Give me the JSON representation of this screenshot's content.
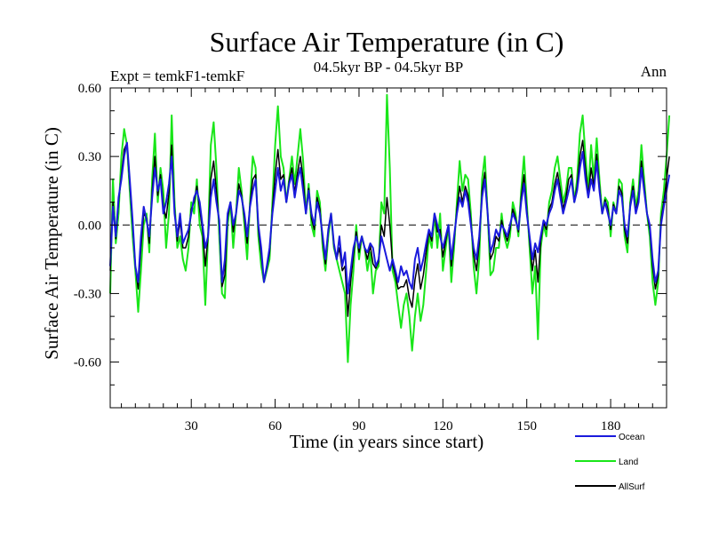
{
  "chart_data": {
    "type": "line",
    "title": "Surface Air Temperature (in C)",
    "subtitle_left": "Expt = temkF1-temkF",
    "subtitle_center": "04.5kyr BP - 04.5kyr BP",
    "subtitle_right": "Ann",
    "xlabel": "Time (in years since start)",
    "ylabel": "Surface Air Temperature (in C)",
    "xlim": [
      1,
      200
    ],
    "ylim": [
      -0.8,
      0.6
    ],
    "xticks": [
      30,
      60,
      90,
      120,
      150,
      180
    ],
    "xtick_labels": [
      "30",
      "60",
      "90",
      "120",
      "150",
      "180"
    ],
    "yticks": [
      0.6,
      0.3,
      0.0,
      -0.3,
      -0.6
    ],
    "ytick_labels": [
      "0.60",
      "0.30",
      "0.00",
      "-0.30",
      "-0.60"
    ],
    "zero_line": true,
    "series": [
      {
        "name": "Ocean",
        "color": "#1a1adc",
        "values": [
          -0.18,
          0.08,
          -0.05,
          0.12,
          0.2,
          0.3,
          0.36,
          0.2,
          0.02,
          -0.18,
          -0.25,
          -0.05,
          0.08,
          0.02,
          -0.05,
          0.12,
          0.25,
          0.15,
          0.2,
          0.05,
          0.1,
          0.18,
          0.3,
          0.05,
          -0.05,
          0.05,
          -0.08,
          -0.05,
          -0.02,
          0.05,
          0.12,
          0.15,
          0.1,
          0.0,
          -0.1,
          -0.05,
          0.12,
          0.2,
          0.1,
          0.02,
          -0.25,
          -0.15,
          0.05,
          0.1,
          0.0,
          0.05,
          0.15,
          0.12,
          0.05,
          -0.05,
          0.08,
          0.15,
          0.2,
          0.0,
          -0.1,
          -0.25,
          -0.18,
          -0.1,
          0.05,
          0.15,
          0.25,
          0.15,
          0.2,
          0.1,
          0.18,
          0.22,
          0.12,
          0.2,
          0.25,
          0.15,
          0.05,
          0.15,
          0.05,
          0.0,
          0.1,
          0.05,
          -0.05,
          -0.15,
          -0.02,
          0.05,
          -0.08,
          -0.15,
          -0.05,
          -0.18,
          -0.12,
          -0.3,
          -0.2,
          -0.1,
          -0.05,
          -0.1,
          -0.05,
          -0.1,
          -0.12,
          -0.08,
          -0.1,
          -0.18,
          -0.15,
          -0.05,
          -0.1,
          -0.15,
          -0.2,
          -0.15,
          -0.2,
          -0.25,
          -0.18,
          -0.22,
          -0.2,
          -0.25,
          -0.28,
          -0.15,
          -0.1,
          -0.2,
          -0.15,
          -0.08,
          -0.02,
          -0.05,
          0.05,
          0.0,
          -0.05,
          -0.1,
          -0.05,
          0.0,
          -0.15,
          -0.05,
          0.05,
          0.12,
          0.08,
          0.15,
          0.1,
          0.0,
          -0.1,
          -0.15,
          -0.05,
          0.12,
          0.2,
          0.05,
          -0.12,
          -0.08,
          -0.02,
          -0.05,
          0.0,
          -0.02,
          -0.05,
          0.0,
          0.05,
          0.02,
          -0.02,
          0.1,
          0.18,
          0.05,
          -0.05,
          -0.15,
          -0.08,
          -0.12,
          -0.05,
          0.02,
          0.0,
          0.05,
          0.08,
          0.15,
          0.2,
          0.12,
          0.05,
          0.1,
          0.15,
          0.2,
          0.1,
          0.15,
          0.25,
          0.32,
          0.2,
          0.12,
          0.2,
          0.15,
          0.28,
          0.15,
          0.05,
          0.1,
          0.05,
          0.0,
          0.08,
          0.05,
          0.15,
          0.12,
          0.0,
          -0.05,
          0.08,
          0.15,
          0.05,
          0.1,
          0.25,
          0.15,
          0.05,
          0.0,
          -0.15,
          -0.25,
          -0.2,
          0.0,
          0.08,
          0.15,
          0.22
        ]
      },
      {
        "name": "Land",
        "color": "#19e619",
        "values": [
          -0.3,
          0.2,
          -0.08,
          0.05,
          0.3,
          0.42,
          0.35,
          0.15,
          -0.05,
          -0.2,
          -0.38,
          -0.2,
          0.0,
          0.05,
          -0.12,
          0.2,
          0.4,
          0.1,
          0.25,
          0.15,
          -0.1,
          0.05,
          0.48,
          0.1,
          -0.1,
          -0.05,
          -0.15,
          -0.2,
          -0.1,
          0.1,
          0.05,
          0.2,
          0.0,
          -0.05,
          -0.35,
          -0.05,
          0.35,
          0.45,
          0.25,
          -0.05,
          -0.3,
          -0.32,
          0.0,
          0.1,
          -0.1,
          0.05,
          0.25,
          0.15,
          0.0,
          -0.15,
          0.1,
          0.3,
          0.25,
          -0.05,
          -0.18,
          -0.25,
          -0.2,
          -0.15,
          0.1,
          0.35,
          0.52,
          0.3,
          0.25,
          0.1,
          0.2,
          0.3,
          0.18,
          0.3,
          0.42,
          0.28,
          0.05,
          0.18,
          0.0,
          -0.05,
          0.15,
          0.1,
          -0.1,
          -0.2,
          -0.05,
          0.05,
          -0.1,
          -0.15,
          -0.2,
          -0.25,
          -0.3,
          -0.6,
          -0.35,
          -0.2,
          0.0,
          -0.15,
          -0.05,
          -0.1,
          -0.2,
          -0.12,
          -0.3,
          -0.2,
          -0.18,
          0.1,
          0.05,
          0.57,
          0.25,
          -0.2,
          -0.25,
          -0.35,
          -0.45,
          -0.35,
          -0.3,
          -0.4,
          -0.55,
          -0.4,
          -0.3,
          -0.42,
          -0.35,
          -0.2,
          -0.05,
          -0.1,
          0.05,
          -0.1,
          0.05,
          -0.2,
          -0.1,
          0.0,
          -0.25,
          -0.1,
          0.1,
          0.28,
          0.15,
          0.22,
          0.2,
          0.05,
          -0.18,
          -0.3,
          -0.15,
          0.2,
          0.3,
          0.05,
          -0.22,
          -0.2,
          -0.1,
          -0.1,
          0.05,
          -0.05,
          -0.1,
          -0.05,
          0.1,
          0.05,
          -0.05,
          0.15,
          0.3,
          0.1,
          -0.1,
          -0.3,
          -0.18,
          -0.5,
          -0.1,
          0.0,
          -0.05,
          0.1,
          0.15,
          0.25,
          0.3,
          0.2,
          0.1,
          0.15,
          0.25,
          0.25,
          0.1,
          0.2,
          0.4,
          0.48,
          0.3,
          0.15,
          0.35,
          0.2,
          0.38,
          0.2,
          0.05,
          0.12,
          0.1,
          -0.05,
          0.1,
          0.05,
          0.2,
          0.18,
          -0.05,
          -0.12,
          0.1,
          0.2,
          0.08,
          0.15,
          0.35,
          0.2,
          0.05,
          -0.05,
          -0.25,
          -0.35,
          -0.25,
          0.05,
          0.15,
          0.3,
          0.48
        ]
      },
      {
        "name": "AllSurf",
        "color": "#000000",
        "values": [
          -0.2,
          0.1,
          -0.06,
          0.1,
          0.22,
          0.33,
          0.36,
          0.18,
          0.0,
          -0.18,
          -0.28,
          -0.1,
          0.05,
          0.03,
          -0.08,
          0.15,
          0.3,
          0.13,
          0.22,
          0.08,
          0.03,
          0.14,
          0.35,
          0.07,
          -0.07,
          0.02,
          -0.1,
          -0.1,
          -0.05,
          0.07,
          0.1,
          0.17,
          0.07,
          -0.02,
          -0.18,
          -0.05,
          0.2,
          0.28,
          0.15,
          0.0,
          -0.27,
          -0.22,
          0.03,
          0.1,
          -0.03,
          0.05,
          0.18,
          0.13,
          0.03,
          -0.08,
          0.09,
          0.2,
          0.22,
          -0.02,
          -0.13,
          -0.25,
          -0.19,
          -0.12,
          0.07,
          0.22,
          0.33,
          0.2,
          0.22,
          0.1,
          0.19,
          0.25,
          0.14,
          0.23,
          0.3,
          0.2,
          0.05,
          0.16,
          0.03,
          -0.02,
          0.12,
          0.07,
          -0.07,
          -0.17,
          -0.03,
          0.05,
          -0.09,
          -0.15,
          -0.1,
          -0.2,
          -0.18,
          -0.4,
          -0.25,
          -0.13,
          -0.03,
          -0.12,
          -0.05,
          -0.1,
          -0.15,
          -0.09,
          -0.17,
          -0.19,
          -0.16,
          0.0,
          -0.05,
          0.12,
          0.0,
          -0.17,
          -0.22,
          -0.28,
          -0.27,
          -0.27,
          -0.24,
          -0.32,
          -0.36,
          -0.24,
          -0.17,
          -0.28,
          -0.22,
          -0.12,
          -0.03,
          -0.07,
          0.05,
          -0.03,
          -0.02,
          -0.14,
          -0.07,
          0.0,
          -0.18,
          -0.07,
          0.07,
          0.17,
          0.1,
          0.17,
          0.13,
          0.02,
          -0.13,
          -0.2,
          -0.08,
          0.15,
          0.23,
          0.05,
          -0.15,
          -0.12,
          -0.05,
          -0.07,
          0.02,
          -0.03,
          -0.07,
          -0.02,
          0.07,
          0.03,
          -0.03,
          0.12,
          0.22,
          0.07,
          -0.07,
          -0.2,
          -0.11,
          -0.25,
          -0.07,
          0.01,
          -0.02,
          0.07,
          0.1,
          0.18,
          0.23,
          0.15,
          0.07,
          0.12,
          0.2,
          0.22,
          0.1,
          0.17,
          0.3,
          0.37,
          0.24,
          0.13,
          0.25,
          0.17,
          0.31,
          0.17,
          0.05,
          0.11,
          0.07,
          -0.02,
          0.09,
          0.05,
          0.17,
          0.14,
          -0.02,
          -0.08,
          0.09,
          0.17,
          0.06,
          0.12,
          0.28,
          0.17,
          0.05,
          -0.02,
          -0.18,
          -0.28,
          -0.22,
          0.02,
          0.1,
          0.2,
          0.3
        ]
      }
    ],
    "legend_position": "bottom-right"
  }
}
